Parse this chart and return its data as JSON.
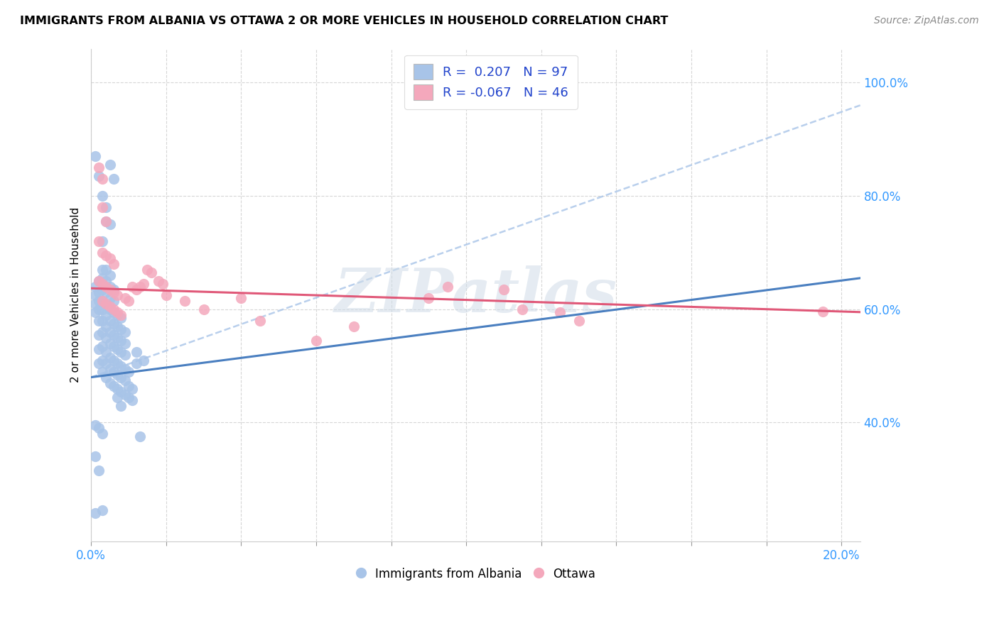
{
  "title": "IMMIGRANTS FROM ALBANIA VS OTTAWA 2 OR MORE VEHICLES IN HOUSEHOLD CORRELATION CHART",
  "source": "Source: ZipAtlas.com",
  "ylabel": "2 or more Vehicles in Household",
  "legend_label1": "Immigrants from Albania",
  "legend_label2": "Ottawa",
  "r1": 0.207,
  "n1": 97,
  "r2": -0.067,
  "n2": 46,
  "xmin": 0.0,
  "xmax": 0.205,
  "ymin": 0.19,
  "ymax": 1.06,
  "yticks": [
    0.4,
    0.6,
    0.8,
    1.0
  ],
  "ytick_labels": [
    "40.0%",
    "60.0%",
    "80.0%",
    "100.0%"
  ],
  "xticks": [
    0.0,
    0.02,
    0.04,
    0.06,
    0.08,
    0.1,
    0.12,
    0.14,
    0.16,
    0.18,
    0.2
  ],
  "xtick_labels": [
    "0.0%",
    "",
    "",
    "",
    "",
    "",
    "",
    "",
    "",
    "",
    "20.0%"
  ],
  "color1": "#a8c4e8",
  "color2": "#f4a8bc",
  "trend1_color": "#4a7fc0",
  "trend2_color": "#e05878",
  "trend_dash_color": "#a8c4e8",
  "watermark": "ZIPatlas",
  "blue_trend": [
    0.0,
    0.205,
    0.48,
    0.655
  ],
  "blue_dash": [
    0.0,
    0.205,
    0.48,
    0.96
  ],
  "pink_trend": [
    0.0,
    0.205,
    0.637,
    0.595
  ],
  "blue_scatter": [
    [
      0.001,
      0.595
    ],
    [
      0.001,
      0.61
    ],
    [
      0.001,
      0.625
    ],
    [
      0.001,
      0.64
    ],
    [
      0.002,
      0.505
    ],
    [
      0.002,
      0.53
    ],
    [
      0.002,
      0.555
    ],
    [
      0.002,
      0.58
    ],
    [
      0.002,
      0.6
    ],
    [
      0.002,
      0.615
    ],
    [
      0.002,
      0.63
    ],
    [
      0.002,
      0.65
    ],
    [
      0.003,
      0.49
    ],
    [
      0.003,
      0.51
    ],
    [
      0.003,
      0.535
    ],
    [
      0.003,
      0.56
    ],
    [
      0.003,
      0.58
    ],
    [
      0.003,
      0.6
    ],
    [
      0.003,
      0.615
    ],
    [
      0.003,
      0.635
    ],
    [
      0.003,
      0.655
    ],
    [
      0.003,
      0.67
    ],
    [
      0.004,
      0.48
    ],
    [
      0.004,
      0.505
    ],
    [
      0.004,
      0.525
    ],
    [
      0.004,
      0.55
    ],
    [
      0.004,
      0.57
    ],
    [
      0.004,
      0.59
    ],
    [
      0.004,
      0.61
    ],
    [
      0.004,
      0.63
    ],
    [
      0.004,
      0.65
    ],
    [
      0.004,
      0.67
    ],
    [
      0.005,
      0.47
    ],
    [
      0.005,
      0.495
    ],
    [
      0.005,
      0.515
    ],
    [
      0.005,
      0.54
    ],
    [
      0.005,
      0.56
    ],
    [
      0.005,
      0.58
    ],
    [
      0.005,
      0.6
    ],
    [
      0.005,
      0.62
    ],
    [
      0.005,
      0.64
    ],
    [
      0.005,
      0.66
    ],
    [
      0.006,
      0.465
    ],
    [
      0.006,
      0.49
    ],
    [
      0.006,
      0.51
    ],
    [
      0.006,
      0.535
    ],
    [
      0.006,
      0.555
    ],
    [
      0.006,
      0.575
    ],
    [
      0.006,
      0.595
    ],
    [
      0.006,
      0.615
    ],
    [
      0.006,
      0.635
    ],
    [
      0.007,
      0.46
    ],
    [
      0.007,
      0.485
    ],
    [
      0.007,
      0.505
    ],
    [
      0.007,
      0.53
    ],
    [
      0.007,
      0.55
    ],
    [
      0.007,
      0.57
    ],
    [
      0.007,
      0.59
    ],
    [
      0.008,
      0.455
    ],
    [
      0.008,
      0.48
    ],
    [
      0.008,
      0.5
    ],
    [
      0.008,
      0.525
    ],
    [
      0.008,
      0.545
    ],
    [
      0.008,
      0.565
    ],
    [
      0.008,
      0.585
    ],
    [
      0.009,
      0.45
    ],
    [
      0.009,
      0.475
    ],
    [
      0.009,
      0.495
    ],
    [
      0.009,
      0.52
    ],
    [
      0.009,
      0.54
    ],
    [
      0.009,
      0.56
    ],
    [
      0.01,
      0.445
    ],
    [
      0.01,
      0.465
    ],
    [
      0.01,
      0.49
    ],
    [
      0.011,
      0.44
    ],
    [
      0.011,
      0.46
    ],
    [
      0.012,
      0.505
    ],
    [
      0.012,
      0.525
    ],
    [
      0.013,
      0.375
    ],
    [
      0.014,
      0.51
    ],
    [
      0.001,
      0.87
    ],
    [
      0.002,
      0.835
    ],
    [
      0.003,
      0.8
    ],
    [
      0.004,
      0.78
    ],
    [
      0.005,
      0.855
    ],
    [
      0.006,
      0.83
    ],
    [
      0.003,
      0.72
    ],
    [
      0.004,
      0.755
    ],
    [
      0.005,
      0.75
    ],
    [
      0.001,
      0.395
    ],
    [
      0.002,
      0.39
    ],
    [
      0.003,
      0.38
    ],
    [
      0.001,
      0.34
    ],
    [
      0.002,
      0.315
    ],
    [
      0.001,
      0.24
    ],
    [
      0.003,
      0.245
    ],
    [
      0.007,
      0.445
    ],
    [
      0.008,
      0.43
    ]
  ],
  "pink_scatter": [
    [
      0.002,
      0.85
    ],
    [
      0.003,
      0.83
    ],
    [
      0.003,
      0.78
    ],
    [
      0.004,
      0.755
    ],
    [
      0.002,
      0.72
    ],
    [
      0.003,
      0.7
    ],
    [
      0.004,
      0.695
    ],
    [
      0.005,
      0.69
    ],
    [
      0.006,
      0.68
    ],
    [
      0.002,
      0.65
    ],
    [
      0.003,
      0.645
    ],
    [
      0.004,
      0.64
    ],
    [
      0.005,
      0.635
    ],
    [
      0.006,
      0.63
    ],
    [
      0.007,
      0.625
    ],
    [
      0.003,
      0.615
    ],
    [
      0.004,
      0.61
    ],
    [
      0.005,
      0.605
    ],
    [
      0.006,
      0.6
    ],
    [
      0.007,
      0.595
    ],
    [
      0.008,
      0.59
    ],
    [
      0.009,
      0.62
    ],
    [
      0.01,
      0.615
    ],
    [
      0.011,
      0.64
    ],
    [
      0.012,
      0.635
    ],
    [
      0.013,
      0.64
    ],
    [
      0.014,
      0.645
    ],
    [
      0.015,
      0.67
    ],
    [
      0.016,
      0.665
    ],
    [
      0.018,
      0.65
    ],
    [
      0.019,
      0.645
    ],
    [
      0.02,
      0.625
    ],
    [
      0.025,
      0.615
    ],
    [
      0.03,
      0.6
    ],
    [
      0.04,
      0.62
    ],
    [
      0.045,
      0.58
    ],
    [
      0.06,
      0.545
    ],
    [
      0.07,
      0.57
    ],
    [
      0.09,
      0.62
    ],
    [
      0.095,
      0.64
    ],
    [
      0.11,
      0.635
    ],
    [
      0.115,
      0.6
    ],
    [
      0.125,
      0.595
    ],
    [
      0.13,
      0.58
    ],
    [
      0.195,
      0.596
    ]
  ]
}
